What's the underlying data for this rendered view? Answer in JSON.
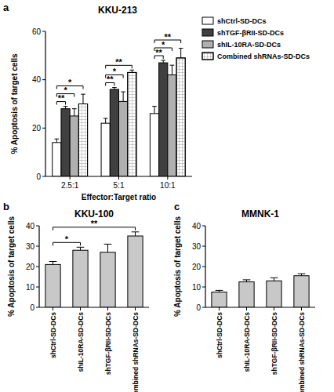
{
  "chart_data": [
    {
      "panel": "a",
      "type": "bar",
      "title": "KKU-213",
      "x_label": "Effector:Target ratio",
      "y_label": "% Apoptosis of target cells",
      "categories": [
        "2.5:1",
        "5:1",
        "10:1"
      ],
      "series": [
        {
          "name": "shCtrl-SD-DCs",
          "color": "#ffffff",
          "values": [
            14,
            22,
            26
          ],
          "errors": [
            1.5,
            2,
            3
          ]
        },
        {
          "name": "shTGF-βRII-SD-DCs",
          "color": "#404040",
          "values": [
            28,
            36,
            47
          ],
          "errors": [
            1,
            0.8,
            1
          ]
        },
        {
          "name": "shIL-10RA-SD-DCs",
          "color": "#b0b0b0",
          "values": [
            25,
            31,
            42
          ],
          "errors": [
            3,
            4,
            4
          ]
        },
        {
          "name": "Combined shRNAs-SD-DCs",
          "color": "#ffffff",
          "values": [
            30,
            43,
            49
          ],
          "errors": [
            4,
            1,
            4
          ]
        }
      ],
      "ylim": [
        0,
        60
      ],
      "yticks": [
        0,
        20,
        40,
        60
      ],
      "legend": "right",
      "significance": [
        {
          "category": 0,
          "from": 0,
          "to": 1,
          "label": "**"
        },
        {
          "category": 0,
          "from": 0,
          "to": 2,
          "label": "*"
        },
        {
          "category": 0,
          "from": 0,
          "to": 3,
          "label": "*"
        },
        {
          "category": 1,
          "from": 0,
          "to": 1,
          "label": "**"
        },
        {
          "category": 1,
          "from": 0,
          "to": 2,
          "label": "*"
        },
        {
          "category": 1,
          "from": 0,
          "to": 3,
          "label": "**"
        },
        {
          "category": 2,
          "from": 0,
          "to": 1,
          "label": "**"
        },
        {
          "category": 2,
          "from": 0,
          "to": 2,
          "label": "*"
        },
        {
          "category": 2,
          "from": 0,
          "to": 3,
          "label": "**"
        }
      ]
    },
    {
      "panel": "b",
      "type": "bar",
      "title": "KKU-100",
      "y_label": "% Apoptosis of target cells",
      "categories": [
        "shCtrl-SD-DCs",
        "shIL-10RA-SD-DCs",
        "shTGF-βRII-SD-DCs",
        "Combined shRNAs-SD-DCs"
      ],
      "values": [
        21,
        28,
        27,
        35
      ],
      "errors": [
        1.5,
        1.5,
        4,
        2
      ],
      "color": "#c8c8c8",
      "ylim": [
        0,
        40
      ],
      "yticks": [
        0,
        10,
        20,
        30,
        40
      ],
      "significance": [
        {
          "from": 0,
          "to": 1,
          "label": "*"
        },
        {
          "from": 0,
          "to": 3,
          "label": "**"
        }
      ]
    },
    {
      "panel": "c",
      "type": "bar",
      "title": "MMNK-1",
      "y_label": "% Apoptosis of target cells",
      "categories": [
        "shCtrl-SD-DCs",
        "shIL-10RA-SD-DCs",
        "shTGF-βRII-SD-DCs",
        "Combined shRNAs-SD-DCs"
      ],
      "values": [
        7.5,
        12.5,
        13,
        15.5
      ],
      "errors": [
        0.8,
        1,
        1.5,
        1
      ],
      "color": "#c8c8c8",
      "ylim": [
        0,
        40
      ],
      "yticks": [
        0,
        10,
        20,
        30,
        40
      ]
    }
  ]
}
